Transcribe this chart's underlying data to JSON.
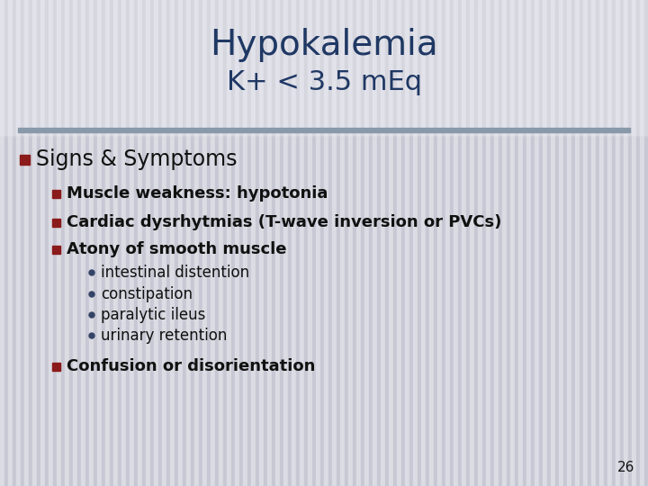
{
  "title_line1": "Hypokalemia",
  "title_line2": "K+ < 3.5 mEq",
  "title_color": "#1F3864",
  "bg_color": "#DCDCE4",
  "bg_stripe_color": "#C8C8D4",
  "divider_color": "#8899AA",
  "bullet_color": "#8B1A1A",
  "dot_color": "#334466",
  "main_bullet": "Signs & Symptoms",
  "main_bullet_color": "#111111",
  "sub_bullets": [
    "Muscle weakness: hypotonia",
    "Cardiac dysrhytmias (T-wave inversion or PVCs)",
    "Atony of smooth muscle"
  ],
  "sub_sub_bullets": [
    "intestinal distention",
    "constipation",
    "paralytic ileus",
    "urinary retention"
  ],
  "last_bullet": "Confusion or disorientation",
  "page_number": "26",
  "text_color": "#111111"
}
